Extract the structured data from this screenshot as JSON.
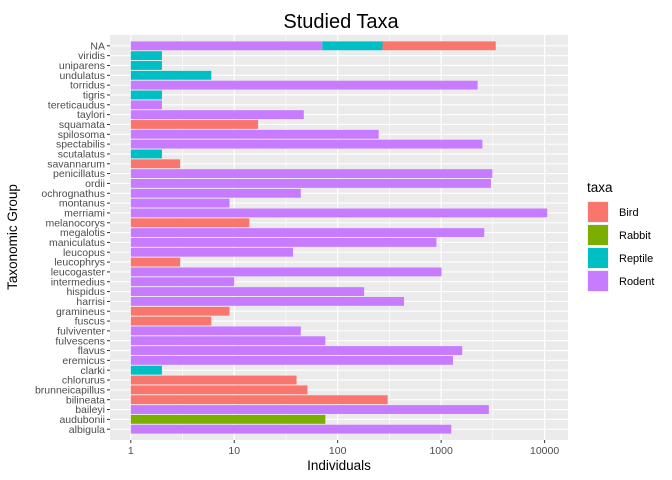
{
  "chart_data": {
    "type": "bar",
    "orientation": "horizontal",
    "stacked": true,
    "title": "Studied Taxa",
    "xlabel": "Individuals",
    "ylabel": "Taxonomic Group",
    "x_scale": "log10",
    "xlim": [
      1,
      10000
    ],
    "x_ticks": [
      1,
      10,
      100,
      1000,
      10000
    ],
    "x_tick_labels": [
      "1",
      "10",
      "100",
      "1000",
      "10000"
    ],
    "grid": true,
    "legend_position": "right",
    "legend_title": "taxa",
    "legend": [
      {
        "name": "Bird",
        "color": "#F8766D"
      },
      {
        "name": "Rabbit",
        "color": "#7CAE00"
      },
      {
        "name": "Reptile",
        "color": "#00BFC4"
      },
      {
        "name": "Rodent",
        "color": "#C77CFF"
      }
    ],
    "categories": [
      "NA",
      "viridis",
      "uniparens",
      "undulatus",
      "torridus",
      "tigris",
      "tereticaudus",
      "taylori",
      "squamata",
      "spilosoma",
      "spectabilis",
      "scutalatus",
      "savannarum",
      "penicillatus",
      "ordii",
      "ochrognathus",
      "montanus",
      "merriami",
      "melanocorys",
      "megalotis",
      "maniculatus",
      "leucopus",
      "leucophrys",
      "leucogaster",
      "intermedius",
      "hispidus",
      "harrisi",
      "gramineus",
      "fuscus",
      "fulviventer",
      "fulvescens",
      "flavus",
      "eremicus",
      "clarki",
      "chlorurus",
      "brunneicapillus",
      "bilineata",
      "baileyi",
      "audubonii",
      "albigula"
    ],
    "bars": [
      {
        "category": "NA",
        "segments": [
          {
            "taxa": "Rodent",
            "value": 70
          },
          {
            "taxa": "Reptile",
            "value": 200
          },
          {
            "taxa": "Bird",
            "value": 3100
          }
        ],
        "total": 3370
      },
      {
        "category": "viridis",
        "segments": [
          {
            "taxa": "Reptile",
            "value": 1
          }
        ],
        "total": 1
      },
      {
        "category": "uniparens",
        "segments": [
          {
            "taxa": "Reptile",
            "value": 1
          }
        ],
        "total": 1
      },
      {
        "category": "undulatus",
        "segments": [
          {
            "taxa": "Reptile",
            "value": 5
          }
        ],
        "total": 5
      },
      {
        "category": "torridus",
        "segments": [
          {
            "taxa": "Rodent",
            "value": 2249
          }
        ],
        "total": 2249
      },
      {
        "category": "tigris",
        "segments": [
          {
            "taxa": "Reptile",
            "value": 1
          }
        ],
        "total": 1
      },
      {
        "category": "tereticaudus",
        "segments": [
          {
            "taxa": "Rodent",
            "value": 1
          }
        ],
        "total": 1
      },
      {
        "category": "taylori",
        "segments": [
          {
            "taxa": "Rodent",
            "value": 46
          }
        ],
        "total": 46
      },
      {
        "category": "squamata",
        "segments": [
          {
            "taxa": "Bird",
            "value": 16
          }
        ],
        "total": 16
      },
      {
        "category": "spilosoma",
        "segments": [
          {
            "taxa": "Rodent",
            "value": 248
          }
        ],
        "total": 248
      },
      {
        "category": "spectabilis",
        "segments": [
          {
            "taxa": "Rodent",
            "value": 2504
          }
        ],
        "total": 2504
      },
      {
        "category": "scutalatus",
        "segments": [
          {
            "taxa": "Reptile",
            "value": 1
          }
        ],
        "total": 1
      },
      {
        "category": "savannarum",
        "segments": [
          {
            "taxa": "Bird",
            "value": 2
          }
        ],
        "total": 2
      },
      {
        "category": "penicillatus",
        "segments": [
          {
            "taxa": "Rodent",
            "value": 3123
          }
        ],
        "total": 3123
      },
      {
        "category": "ordii",
        "segments": [
          {
            "taxa": "Rodent",
            "value": 3027
          }
        ],
        "total": 3027
      },
      {
        "category": "ochrognathus",
        "segments": [
          {
            "taxa": "Rodent",
            "value": 43
          }
        ],
        "total": 43
      },
      {
        "category": "montanus",
        "segments": [
          {
            "taxa": "Rodent",
            "value": 8
          }
        ],
        "total": 8
      },
      {
        "category": "merriami",
        "segments": [
          {
            "taxa": "Rodent",
            "value": 10596
          }
        ],
        "total": 10596
      },
      {
        "category": "melanocorys",
        "segments": [
          {
            "taxa": "Bird",
            "value": 13
          }
        ],
        "total": 13
      },
      {
        "category": "megalotis",
        "segments": [
          {
            "taxa": "Rodent",
            "value": 2609
          }
        ],
        "total": 2609
      },
      {
        "category": "maniculatus",
        "segments": [
          {
            "taxa": "Rodent",
            "value": 899
          }
        ],
        "total": 899
      },
      {
        "category": "leucopus",
        "segments": [
          {
            "taxa": "Rodent",
            "value": 36
          }
        ],
        "total": 36
      },
      {
        "category": "leucophrys",
        "segments": [
          {
            "taxa": "Bird",
            "value": 2
          }
        ],
        "total": 2
      },
      {
        "category": "leucogaster",
        "segments": [
          {
            "taxa": "Rodent",
            "value": 1006
          }
        ],
        "total": 1006
      },
      {
        "category": "intermedius",
        "segments": [
          {
            "taxa": "Rodent",
            "value": 9
          }
        ],
        "total": 9
      },
      {
        "category": "hispidus",
        "segments": [
          {
            "taxa": "Rodent",
            "value": 179
          }
        ],
        "total": 179
      },
      {
        "category": "harrisi",
        "segments": [
          {
            "taxa": "Rodent",
            "value": 437
          }
        ],
        "total": 437
      },
      {
        "category": "gramineus",
        "segments": [
          {
            "taxa": "Bird",
            "value": 8
          }
        ],
        "total": 8
      },
      {
        "category": "fuscus",
        "segments": [
          {
            "taxa": "Bird",
            "value": 5
          }
        ],
        "total": 5
      },
      {
        "category": "fulviventer",
        "segments": [
          {
            "taxa": "Rodent",
            "value": 43
          }
        ],
        "total": 43
      },
      {
        "category": "fulvescens",
        "segments": [
          {
            "taxa": "Rodent",
            "value": 75
          }
        ],
        "total": 75
      },
      {
        "category": "flavus",
        "segments": [
          {
            "taxa": "Rodent",
            "value": 1597
          }
        ],
        "total": 1597
      },
      {
        "category": "eremicus",
        "segments": [
          {
            "taxa": "Rodent",
            "value": 1299
          }
        ],
        "total": 1299
      },
      {
        "category": "clarki",
        "segments": [
          {
            "taxa": "Reptile",
            "value": 1
          }
        ],
        "total": 1
      },
      {
        "category": "chlorurus",
        "segments": [
          {
            "taxa": "Bird",
            "value": 39
          }
        ],
        "total": 39
      },
      {
        "category": "brunneicapillus",
        "segments": [
          {
            "taxa": "Bird",
            "value": 50
          }
        ],
        "total": 50
      },
      {
        "category": "bilineata",
        "segments": [
          {
            "taxa": "Bird",
            "value": 303
          }
        ],
        "total": 303
      },
      {
        "category": "baileyi",
        "segments": [
          {
            "taxa": "Rodent",
            "value": 2891
          }
        ],
        "total": 2891
      },
      {
        "category": "audubonii",
        "segments": [
          {
            "taxa": "Rabbit",
            "value": 75
          }
        ],
        "total": 75
      },
      {
        "category": "albigula",
        "segments": [
          {
            "taxa": "Rodent",
            "value": 1252
          }
        ],
        "total": 1252
      }
    ]
  }
}
